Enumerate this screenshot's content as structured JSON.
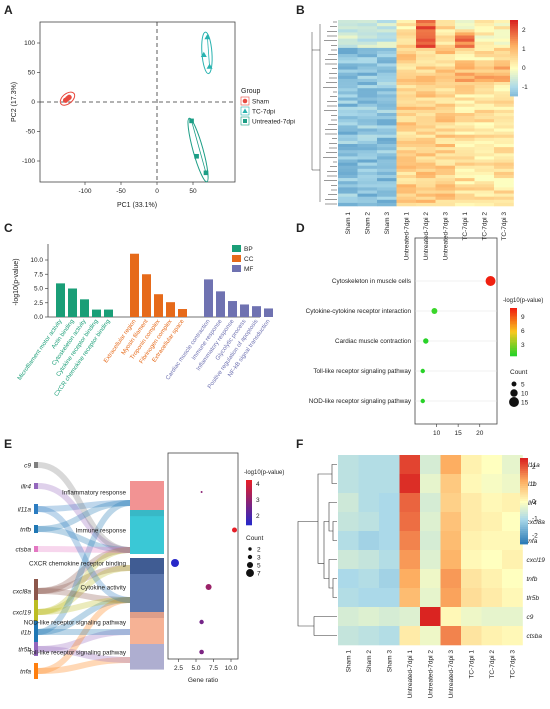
{
  "panels": {
    "A": {
      "label": "A",
      "xlabel": "PC1 (33.1%)",
      "ylabel": "PC2 (17.3%)",
      "x_ticks": [
        "-100",
        "-50",
        "0",
        "50"
      ],
      "y_ticks": [
        "100",
        "50",
        "0",
        "-50",
        "-100"
      ],
      "legend_title": "Group",
      "groups": [
        {
          "name": "Sham",
          "color": "#e8493f",
          "shape": "circle",
          "points": [
            [
              -127,
              3
            ],
            [
              -124,
              6
            ],
            [
              -122,
              8
            ]
          ]
        },
        {
          "name": "TC-7dpi",
          "color": "#2ab3b0",
          "shape": "triangle",
          "points": [
            [
              70,
              110
            ],
            [
              65,
              80
            ],
            [
              73,
              60
            ]
          ]
        },
        {
          "name": "Untreated-7dpi",
          "color": "#1c9e86",
          "shape": "square",
          "points": [
            [
              48,
              -32
            ],
            [
              55,
              -92
            ],
            [
              68,
              -120
            ]
          ]
        }
      ]
    },
    "B": {
      "label": "B",
      "colorbar_ticks": [
        "2",
        "1",
        "0",
        "-1"
      ],
      "columns": [
        "Sham 1",
        "Sham 2",
        "Sham 3",
        "Untreated-7dpi 1",
        "Untreated-7dpi 2",
        "Untreated-7dpi 3",
        "TC-7dpi 1",
        "TC-7dpi 2",
        "TC-7dpi 3"
      ]
    },
    "C": {
      "label": "C",
      "ylabel": "-log10(p-value)",
      "y_ticks": [
        "0.0",
        "2.5",
        "5.0",
        "7.5",
        "10.0"
      ],
      "legend": [
        {
          "name": "BP",
          "color": "#1a9e77"
        },
        {
          "name": "CC",
          "color": "#e66a1a"
        },
        {
          "name": "MF",
          "color": "#6f72b1"
        }
      ],
      "bars": [
        {
          "term": "Microfilament motor activity",
          "group": "BP",
          "value": 5.9
        },
        {
          "term": "Actin binding",
          "group": "BP",
          "value": 5.0
        },
        {
          "term": "Cytoskeleton activity",
          "group": "BP",
          "value": 3.1
        },
        {
          "term": "Cytokine receptor binding",
          "group": "BP",
          "value": 1.3
        },
        {
          "term": "CXCR chemokine receptor binding",
          "group": "BP",
          "value": 1.3
        },
        {
          "term": "Extracellular region",
          "group": "CC",
          "value": 11.1
        },
        {
          "term": "Myosin filament",
          "group": "CC",
          "value": 7.5
        },
        {
          "term": "Troponin complex",
          "group": "CC",
          "value": 4.0
        },
        {
          "term": "Fibrinogen complex",
          "group": "CC",
          "value": 2.6
        },
        {
          "term": "Extracellular space",
          "group": "CC",
          "value": 1.4
        },
        {
          "term": "Cardiac muscle contraction",
          "group": "MF",
          "value": 6.6
        },
        {
          "term": "Immune response",
          "group": "MF",
          "value": 4.5
        },
        {
          "term": "Inflammatory response",
          "group": "MF",
          "value": 2.8
        },
        {
          "term": "Glycolytic process",
          "group": "MF",
          "value": 2.2
        },
        {
          "term": "Positive regulation of apoptosis",
          "group": "MF",
          "value": 1.9
        },
        {
          "term": "NF-kB signal transduction",
          "group": "MF",
          "value": 1.5
        }
      ]
    },
    "D": {
      "label": "D",
      "x_ticks": [
        "10",
        "15",
        "20"
      ],
      "pathways": [
        {
          "name": "Cytoskeleton in muscle cells",
          "x": 22.5,
          "count": 15,
          "color": "#f02010"
        },
        {
          "name": "Cytokine-cytokine receptor interaction",
          "x": 9.5,
          "count": 7,
          "color": "#3ad62a"
        },
        {
          "name": "Cardiac muscle contraction",
          "x": 7.5,
          "count": 6,
          "color": "#28d228"
        },
        {
          "name": "Toll-like receptor signaling pathway",
          "x": 6.8,
          "count": 4,
          "color": "#28d228"
        },
        {
          "name": "NOD-like receptor signaling pathway",
          "x": 6.8,
          "count": 4,
          "color": "#28d228"
        }
      ],
      "color_legend_title": "-log10(p-value)",
      "color_ticks": [
        "9",
        "6",
        "3"
      ],
      "size_legend_title": "Count",
      "size_ticks": [
        "5",
        "10",
        "15"
      ]
    },
    "E": {
      "label": "E",
      "genes": [
        "c9",
        "illr4",
        "il11a",
        "tnfb",
        "ctsba",
        "cxcl8a",
        "cxcl19",
        "il1b",
        "tlr5b",
        "tnfa"
      ],
      "gene_colors": [
        "#7f7f7f",
        "#9467bd",
        "#2b7cc1",
        "#1f77b4",
        "#e377c2",
        "#8c564b",
        "#bcbd22",
        "#1f77b4",
        "#9467bd",
        "#ff7f0e"
      ],
      "pathways": [
        "Inflammatory response",
        "Immune response",
        "CXCR chemokine receptor binding",
        "Cytokine activity",
        "NOD-like receptor signaling pathway",
        "Toll-like receptor signaling pathway"
      ],
      "pathway_colors": [
        "#f08080",
        "#17becf",
        "#1f3f80",
        "#3f5f9f",
        "#f4a582",
        "#a0a0c8"
      ],
      "points": [
        {
          "ratio": 5.8,
          "log10p": 3.3
        },
        {
          "ratio": 10.5,
          "log10p": 4.5
        },
        {
          "ratio": 2.0,
          "log10p": 2.0
        },
        {
          "ratio": 6.8,
          "log10p": 3.5
        },
        {
          "ratio": 5.8,
          "log10p": 3.0
        },
        {
          "ratio": 5.8,
          "log10p": 3.1
        }
      ],
      "x_ticks": [
        "2.5",
        "5.0",
        "7.5",
        "10.0"
      ],
      "xlabel": "Gene ratio",
      "color_legend_title": "-log10(p-value)",
      "color_ticks": [
        "4",
        "3",
        "2"
      ],
      "size_legend_title": "Count",
      "size_ticks": [
        "2",
        "3",
        "5",
        "7"
      ]
    },
    "F": {
      "label": "F",
      "rows": [
        "il11a",
        "il1b",
        "illr4",
        "cxcl8a",
        "tnfa",
        "cxcl19",
        "tnfb",
        "tlr5b",
        "c9",
        "ctsba"
      ],
      "columns": [
        "Sham 1",
        "Sham 2",
        "Sham 3",
        "Untreated-7dpi 1",
        "Untreated-7dpi 2",
        "Untreated-7dpi 3",
        "TC-7dpi 1",
        "TC-7dpi 2",
        "TC-7dpi 3"
      ],
      "colorbar_ticks": [
        "2",
        "1",
        "0",
        "-1",
        "-2"
      ],
      "values": [
        [
          -0.8,
          -0.9,
          -0.9,
          2.2,
          -0.5,
          1.2,
          0.2,
          0.0,
          -0.3
        ],
        [
          -0.8,
          -0.9,
          -0.9,
          2.4,
          -0.3,
          0.8,
          0.1,
          -0.1,
          -0.2
        ],
        [
          -0.6,
          -0.9,
          -1.0,
          1.9,
          -0.5,
          0.7,
          0.3,
          0.1,
          0.2
        ],
        [
          -0.7,
          -0.8,
          -1.0,
          1.8,
          -0.4,
          0.9,
          0.3,
          0.2,
          0.0
        ],
        [
          -0.9,
          -1.1,
          -1.0,
          1.6,
          -0.5,
          1.0,
          0.2,
          0.1,
          0.1
        ],
        [
          -0.6,
          -0.7,
          -0.9,
          1.4,
          -0.4,
          1.1,
          0.1,
          0.0,
          0.2
        ],
        [
          -1.0,
          -0.9,
          -1.1,
          1.2,
          -0.2,
          1.4,
          0.4,
          0.2,
          0.0
        ],
        [
          -0.9,
          -1.0,
          -1.0,
          1.0,
          -0.3,
          1.3,
          0.5,
          0.3,
          0.1
        ],
        [
          -0.5,
          -0.4,
          -0.5,
          -0.4,
          2.5,
          0.1,
          -0.2,
          -0.3,
          -0.3
        ],
        [
          -0.7,
          -0.8,
          -0.9,
          0.3,
          -0.2,
          1.6,
          0.4,
          0.2,
          0.1
        ]
      ]
    }
  }
}
